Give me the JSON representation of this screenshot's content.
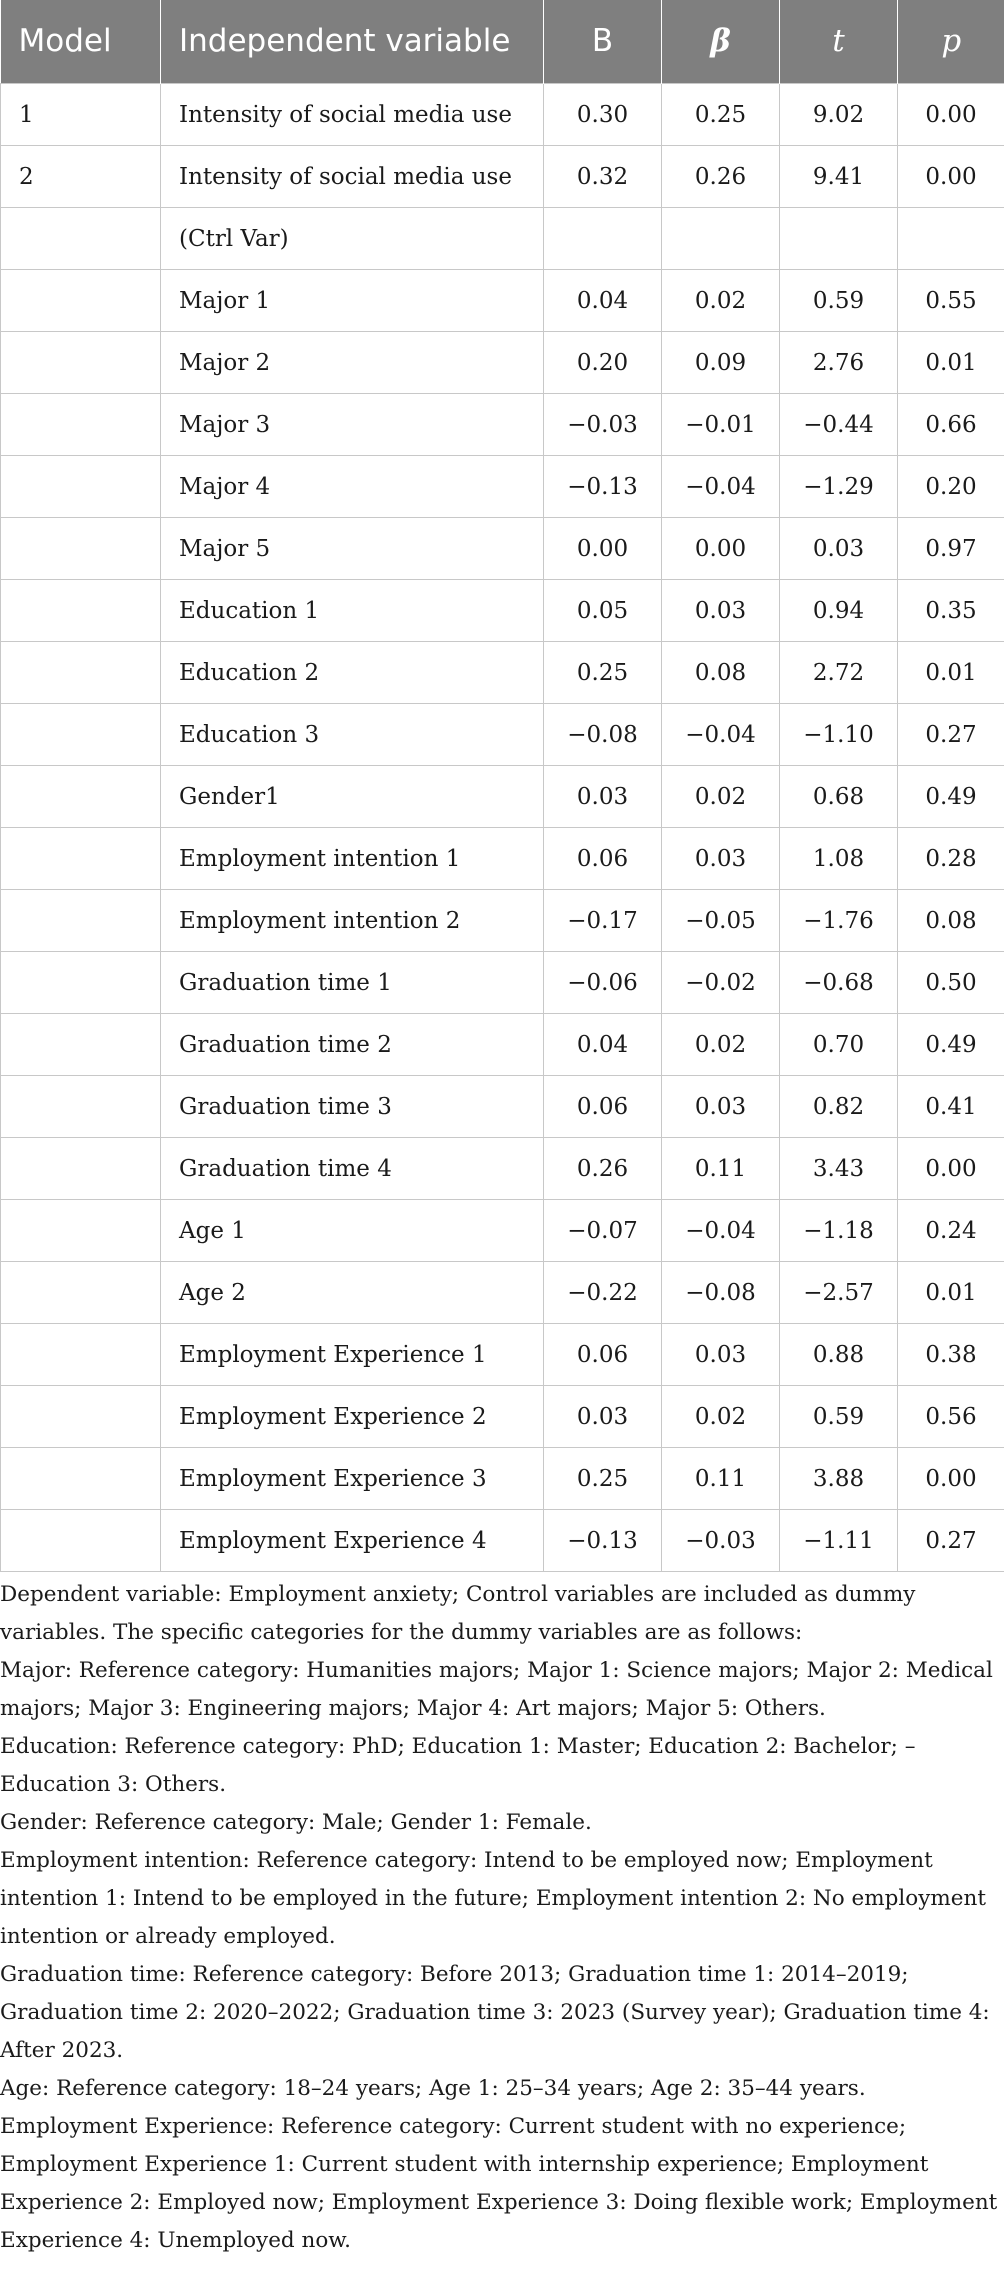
{
  "table": {
    "headers": {
      "model": "Model",
      "variable": "Independent variable",
      "b": "B",
      "beta": "β",
      "t": "t",
      "p": "p"
    },
    "rows": [
      {
        "model": "1",
        "variable": "Intensity of social media use",
        "b": "0.30",
        "beta": "0.25",
        "t": "9.02",
        "p": "0.00"
      },
      {
        "model": "2",
        "variable": "Intensity of social media use",
        "b": "0.32",
        "beta": "0.26",
        "t": "9.41",
        "p": "0.00"
      },
      {
        "model": "",
        "variable": "(Ctrl Var)",
        "b": "",
        "beta": "",
        "t": "",
        "p": ""
      },
      {
        "model": "",
        "variable": "Major 1",
        "b": "0.04",
        "beta": "0.02",
        "t": "0.59",
        "p": "0.55"
      },
      {
        "model": "",
        "variable": "Major 2",
        "b": "0.20",
        "beta": "0.09",
        "t": "2.76",
        "p": "0.01"
      },
      {
        "model": "",
        "variable": "Major 3",
        "b": "−0.03",
        "beta": "−0.01",
        "t": "−0.44",
        "p": "0.66"
      },
      {
        "model": "",
        "variable": "Major 4",
        "b": "−0.13",
        "beta": "−0.04",
        "t": "−1.29",
        "p": "0.20"
      },
      {
        "model": "",
        "variable": "Major 5",
        "b": "0.00",
        "beta": "0.00",
        "t": "0.03",
        "p": "0.97"
      },
      {
        "model": "",
        "variable": "Education 1",
        "b": "0.05",
        "beta": "0.03",
        "t": "0.94",
        "p": "0.35"
      },
      {
        "model": "",
        "variable": "Education 2",
        "b": "0.25",
        "beta": "0.08",
        "t": "2.72",
        "p": "0.01"
      },
      {
        "model": "",
        "variable": "Education 3",
        "b": "−0.08",
        "beta": "−0.04",
        "t": "−1.10",
        "p": "0.27"
      },
      {
        "model": "",
        "variable": "Gender1",
        "b": "0.03",
        "beta": "0.02",
        "t": "0.68",
        "p": "0.49"
      },
      {
        "model": "",
        "variable": "Employment intention 1",
        "b": "0.06",
        "beta": "0.03",
        "t": "1.08",
        "p": "0.28"
      },
      {
        "model": "",
        "variable": "Employment intention 2",
        "b": "−0.17",
        "beta": "−0.05",
        "t": "−1.76",
        "p": "0.08"
      },
      {
        "model": "",
        "variable": "Graduation time 1",
        "b": "−0.06",
        "beta": "−0.02",
        "t": "−0.68",
        "p": "0.50"
      },
      {
        "model": "",
        "variable": "Graduation time 2",
        "b": "0.04",
        "beta": "0.02",
        "t": "0.70",
        "p": "0.49"
      },
      {
        "model": "",
        "variable": "Graduation time 3",
        "b": "0.06",
        "beta": "0.03",
        "t": "0.82",
        "p": "0.41"
      },
      {
        "model": "",
        "variable": "Graduation time 4",
        "b": "0.26",
        "beta": "0.11",
        "t": "3.43",
        "p": "0.00"
      },
      {
        "model": "",
        "variable": "Age 1",
        "b": "−0.07",
        "beta": "−0.04",
        "t": "−1.18",
        "p": "0.24"
      },
      {
        "model": "",
        "variable": "Age 2",
        "b": "−0.22",
        "beta": "−0.08",
        "t": "−2.57",
        "p": "0.01"
      },
      {
        "model": "",
        "variable": "Employment Experience 1",
        "b": "0.06",
        "beta": "0.03",
        "t": "0.88",
        "p": "0.38"
      },
      {
        "model": "",
        "variable": "Employment Experience 2",
        "b": "0.03",
        "beta": "0.02",
        "t": "0.59",
        "p": "0.56"
      },
      {
        "model": "",
        "variable": "Employment Experience 3",
        "b": "0.25",
        "beta": "0.11",
        "t": "3.88",
        "p": "0.00"
      },
      {
        "model": "",
        "variable": "Employment Experience 4",
        "b": "−0.13",
        "beta": "−0.03",
        "t": "−1.11",
        "p": "0.27"
      }
    ]
  },
  "notes": [
    "Dependent variable: Employment anxiety; Control variables are included as dummy variables. The specific categories for the dummy variables are as follows:",
    "Major: Reference category: Humanities majors; Major 1: Science majors; Major 2: Medical majors; Major 3: Engineering majors; Major 4: Art majors; Major 5: Others.",
    "Education: Reference category: PhD; Education 1: Master; Education 2: Bachelor; – Education 3: Others.",
    "Gender: Reference category: Male; Gender 1: Female.",
    "Employment intention: Reference category: Intend to be employed now; Employment intention 1: Intend to be employed in the future; Employment intention 2: No employment intention or already employed.",
    "Graduation time: Reference category: Before 2013; Graduation time 1: 2014–2019; Graduation time 2: 2020–2022; Graduation time 3: 2023 (Survey year); Graduation time 4: After 2023.",
    "Age: Reference category: 18–24 years; Age 1: 25–34 years; Age 2: 35–44 years.",
    "Employment Experience: Reference category: Current student with no experience; Employment Experience 1: Current student with internship experience; Employment Experience 2: Employed now; Employment Experience 3: Doing flexible work; Employment Experience 4: Unemployed now."
  ]
}
